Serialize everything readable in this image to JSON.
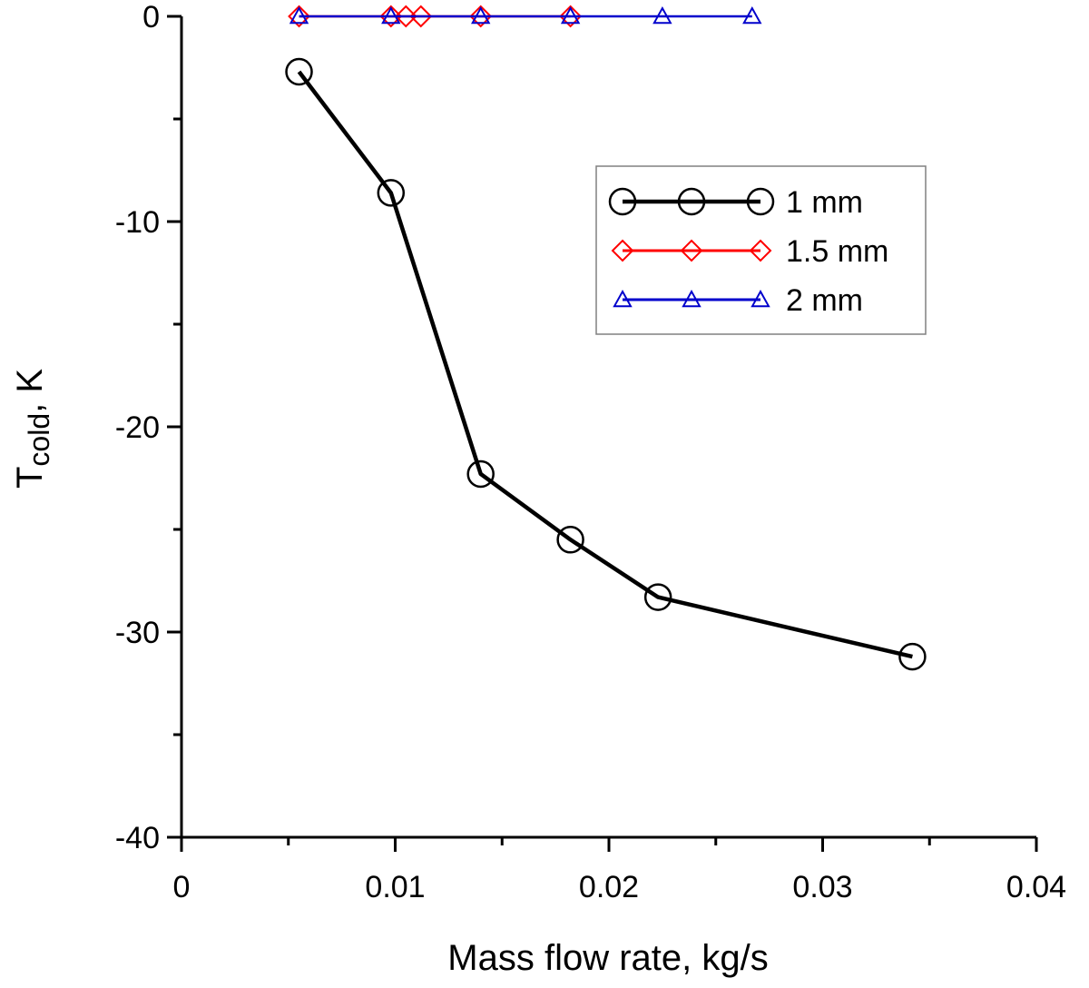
{
  "chart_data": {
    "type": "line",
    "xlabel": "Mass flow rate, kg/s",
    "ylabel_main": "T",
    "ylabel_sub": "cold",
    "ylabel_suffix": ", K",
    "xlim": [
      0,
      0.04
    ],
    "ylim": [
      -40,
      0
    ],
    "xticks": [
      0,
      0.01,
      0.02,
      0.03,
      0.04
    ],
    "xtick_labels": [
      "0",
      "0.01",
      "0.02",
      "0.03",
      "0.04"
    ],
    "yticks": [
      0,
      -10,
      -20,
      -30,
      -40
    ],
    "ytick_labels": [
      "0",
      "-10",
      "-20",
      "-30",
      "-40"
    ],
    "grid": false,
    "legend_position": "top-right",
    "series": [
      {
        "name": "1 mm",
        "color": "#000000",
        "marker": "circle",
        "x": [
          0.0055,
          0.0098,
          0.014,
          0.0182,
          0.0223,
          0.0342
        ],
        "y": [
          -2.7,
          -8.6,
          -22.3,
          -25.5,
          -28.3,
          -31.2
        ]
      },
      {
        "name": "1.5 mm",
        "color": "#ff0000",
        "marker": "diamond",
        "x": [
          0.0055,
          0.0098,
          0.0105,
          0.0112,
          0.014,
          0.0182
        ],
        "y": [
          0,
          0,
          0,
          0,
          0,
          0
        ]
      },
      {
        "name": "2 mm",
        "color": "#0000cc",
        "marker": "triangle",
        "x": [
          0.0055,
          0.0098,
          0.014,
          0.0182,
          0.0225,
          0.0267
        ],
        "y": [
          0,
          0,
          0,
          0,
          0,
          0
        ]
      }
    ]
  }
}
